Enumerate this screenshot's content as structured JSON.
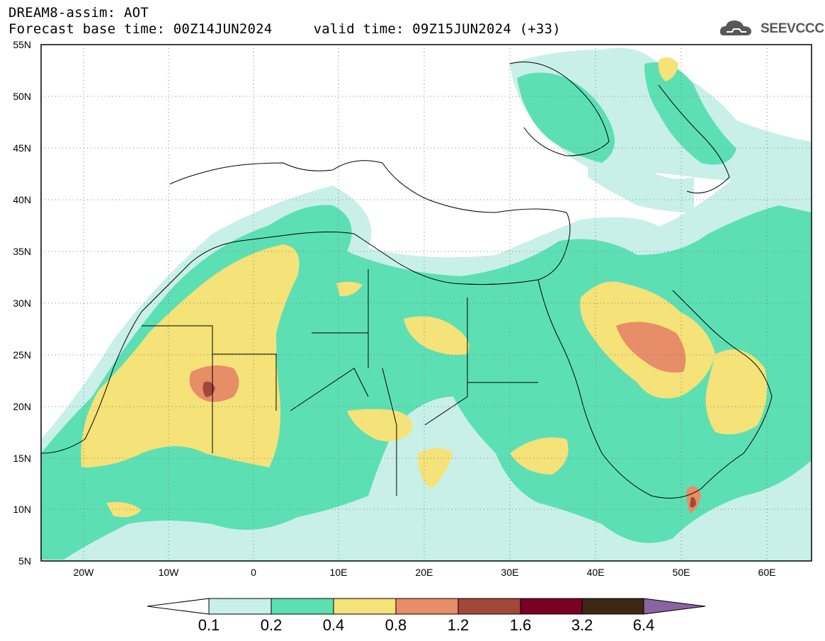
{
  "header": {
    "title_line1": "DREAM8-assim: AOT",
    "title_line2": "Forecast base time: 00Z14JUN2024     valid time: 09Z15JUN2024 (+33)",
    "logo_text": "SEEVCCC",
    "logo_icon": "cloud-icon"
  },
  "map": {
    "lon_range": [
      -25,
      65
    ],
    "lat_range": [
      5,
      55
    ],
    "lat_ticks": [
      "5N",
      "10N",
      "15N",
      "20N",
      "25N",
      "30N",
      "35N",
      "40N",
      "45N",
      "50N",
      "55N"
    ],
    "lon_ticks": [
      "20W",
      "10W",
      "0",
      "10E",
      "20E",
      "30E",
      "40E",
      "50E",
      "60E"
    ],
    "grid": "dotted",
    "field": "Aerosol Optical Thickness"
  },
  "colorbar": {
    "levels": [
      "0.1",
      "0.2",
      "0.4",
      "0.8",
      "1.2",
      "1.6",
      "3.2",
      "6.4"
    ],
    "colors": [
      "#ffffff",
      "#c8f0e8",
      "#5ddfb4",
      "#f5e278",
      "#e78d67",
      "#a2473a",
      "#7a0024",
      "#3d2816",
      "#8a64a0"
    ]
  }
}
